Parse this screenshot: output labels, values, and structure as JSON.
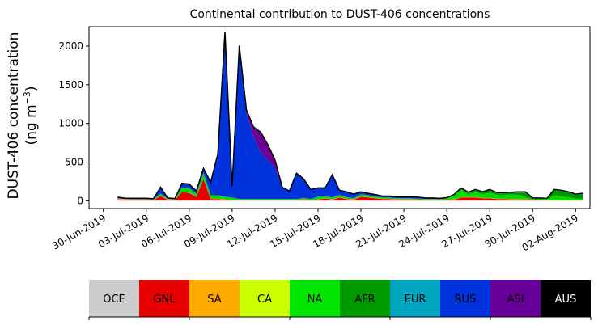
{
  "chart_data": {
    "type": "area",
    "stacked": true,
    "title": "Continental contribution to DUST-406 concentrations",
    "ylabel_line1": "DUST-406 concentration",
    "ylabel_line2_prefix": "(ng m",
    "ylabel_line2_exp": "−3",
    "ylabel_line2_suffix": ")",
    "x_start": "2019-06-29",
    "x_end": "2019-08-03",
    "ylim": [
      -100,
      2250
    ],
    "y_ticks": [
      0,
      500,
      1000,
      1500,
      2000
    ],
    "x_ticks": [
      {
        "date": "2019-06-30",
        "label": "30-Jun-2019"
      },
      {
        "date": "2019-07-03",
        "label": "03-Jul-2019"
      },
      {
        "date": "2019-07-06",
        "label": "06-Jul-2019"
      },
      {
        "date": "2019-07-09",
        "label": "09-Jul-2019"
      },
      {
        "date": "2019-07-12",
        "label": "12-Jul-2019"
      },
      {
        "date": "2019-07-15",
        "label": "15-Jul-2019"
      },
      {
        "date": "2019-07-18",
        "label": "18-Jul-2019"
      },
      {
        "date": "2019-07-21",
        "label": "21-Jul-2019"
      },
      {
        "date": "2019-07-24",
        "label": "24-Jul-2019"
      },
      {
        "date": "2019-07-27",
        "label": "27-Jul-2019"
      },
      {
        "date": "2019-07-30",
        "label": "30-Jul-2019"
      },
      {
        "date": "2019-08-02",
        "label": "02-Aug-2019"
      }
    ],
    "x": [
      "2019-07-01 00:00",
      "2019-07-01 12:00",
      "2019-07-02 00:00",
      "2019-07-02 12:00",
      "2019-07-03 00:00",
      "2019-07-03 12:00",
      "2019-07-04 00:00",
      "2019-07-04 12:00",
      "2019-07-05 00:00",
      "2019-07-05 12:00",
      "2019-07-06 00:00",
      "2019-07-06 12:00",
      "2019-07-07 00:00",
      "2019-07-07 12:00",
      "2019-07-08 00:00",
      "2019-07-08 12:00",
      "2019-07-09 00:00",
      "2019-07-09 12:00",
      "2019-07-10 00:00",
      "2019-07-10 12:00",
      "2019-07-11 00:00",
      "2019-07-11 12:00",
      "2019-07-12 00:00",
      "2019-07-12 12:00",
      "2019-07-13 00:00",
      "2019-07-13 12:00",
      "2019-07-14 00:00",
      "2019-07-14 12:00",
      "2019-07-15 00:00",
      "2019-07-15 12:00",
      "2019-07-16 00:00",
      "2019-07-16 12:00",
      "2019-07-17 00:00",
      "2019-07-17 12:00",
      "2019-07-18 00:00",
      "2019-07-18 12:00",
      "2019-07-19 00:00",
      "2019-07-19 12:00",
      "2019-07-20 00:00",
      "2019-07-20 12:00",
      "2019-07-21 00:00",
      "2019-07-21 12:00",
      "2019-07-22 00:00",
      "2019-07-22 12:00",
      "2019-07-23 00:00",
      "2019-07-23 12:00",
      "2019-07-24 00:00",
      "2019-07-24 12:00",
      "2019-07-25 00:00",
      "2019-07-25 12:00",
      "2019-07-26 00:00",
      "2019-07-26 12:00",
      "2019-07-27 00:00",
      "2019-07-27 12:00",
      "2019-07-28 00:00",
      "2019-07-28 12:00",
      "2019-07-29 00:00",
      "2019-07-29 12:00",
      "2019-07-30 00:00",
      "2019-07-30 12:00",
      "2019-07-31 00:00",
      "2019-07-31 12:00",
      "2019-08-01 00:00",
      "2019-08-01 12:00",
      "2019-08-02 00:00",
      "2019-08-02 12:00"
    ],
    "series": [
      {
        "name": "OCE",
        "color": "#c8c8c8",
        "values": [
          5,
          3,
          3,
          3,
          3,
          3,
          3,
          3,
          3,
          3,
          3,
          3,
          3,
          3,
          3,
          3,
          3,
          3,
          3,
          3,
          3,
          3,
          3,
          3,
          3,
          3,
          3,
          3,
          3,
          3,
          3,
          3,
          3,
          3,
          3,
          3,
          3,
          3,
          3,
          3,
          3,
          3,
          3,
          3,
          3,
          3,
          3,
          3,
          3,
          3,
          3,
          3,
          3,
          3,
          3,
          3,
          3,
          3,
          3,
          3,
          3,
          3,
          3,
          3,
          3,
          3
        ]
      },
      {
        "name": "GNL",
        "color": "#e60000",
        "values": [
          15,
          10,
          8,
          8,
          8,
          5,
          60,
          10,
          5,
          110,
          100,
          50,
          280,
          20,
          20,
          10,
          0,
          0,
          0,
          0,
          0,
          0,
          0,
          0,
          0,
          0,
          10,
          0,
          10,
          30,
          10,
          40,
          20,
          10,
          50,
          40,
          30,
          20,
          20,
          10,
          10,
          10,
          5,
          5,
          5,
          5,
          5,
          10,
          40,
          40,
          40,
          30,
          30,
          20,
          20,
          15,
          10,
          10,
          5,
          0,
          0,
          0,
          0,
          0,
          0,
          0
        ]
      },
      {
        "name": "SA",
        "color": "#ffaa00",
        "values": [
          2,
          2,
          2,
          2,
          2,
          2,
          2,
          2,
          2,
          2,
          2,
          2,
          2,
          2,
          2,
          2,
          2,
          2,
          2,
          2,
          2,
          2,
          2,
          2,
          2,
          2,
          2,
          2,
          2,
          2,
          2,
          2,
          2,
          2,
          2,
          2,
          2,
          2,
          2,
          2,
          2,
          2,
          2,
          2,
          2,
          2,
          2,
          2,
          2,
          2,
          2,
          2,
          2,
          2,
          2,
          2,
          2,
          2,
          2,
          2,
          2,
          2,
          2,
          2,
          2,
          2
        ]
      },
      {
        "name": "CA",
        "color": "#c8f000",
        "values": [
          2,
          2,
          2,
          2,
          2,
          2,
          2,
          2,
          2,
          2,
          2,
          2,
          2,
          2,
          2,
          2,
          2,
          2,
          2,
          2,
          2,
          2,
          2,
          2,
          2,
          2,
          2,
          2,
          2,
          2,
          2,
          2,
          2,
          2,
          2,
          2,
          2,
          2,
          2,
          2,
          2,
          2,
          2,
          2,
          2,
          2,
          2,
          2,
          2,
          2,
          2,
          2,
          2,
          2,
          2,
          2,
          2,
          2,
          2,
          2,
          2,
          2,
          2,
          2,
          2,
          2
        ]
      },
      {
        "name": "NA",
        "color": "#00dc00",
        "values": [
          5,
          3,
          3,
          3,
          3,
          3,
          20,
          5,
          5,
          50,
          50,
          30,
          70,
          40,
          40,
          30,
          30,
          10,
          10,
          10,
          10,
          10,
          10,
          10,
          10,
          10,
          15,
          10,
          30,
          20,
          20,
          25,
          15,
          10,
          20,
          20,
          15,
          10,
          10,
          10,
          10,
          10,
          10,
          5,
          5,
          5,
          15,
          50,
          100,
          40,
          70,
          50,
          70,
          50,
          50,
          60,
          60,
          30,
          5,
          10,
          10,
          60,
          50,
          40,
          20,
          20
        ]
      },
      {
        "name": "AFR",
        "color": "#009600",
        "values": [
          3,
          2,
          2,
          2,
          2,
          2,
          5,
          2,
          2,
          5,
          5,
          5,
          5,
          5,
          5,
          5,
          5,
          5,
          5,
          5,
          5,
          5,
          5,
          5,
          5,
          5,
          5,
          5,
          5,
          5,
          5,
          5,
          5,
          5,
          5,
          5,
          5,
          5,
          5,
          5,
          5,
          5,
          5,
          5,
          5,
          5,
          5,
          5,
          10,
          15,
          20,
          20,
          30,
          20,
          20,
          20,
          30,
          60,
          10,
          10,
          5,
          70,
          70,
          60,
          50,
          60
        ]
      },
      {
        "name": "EUR",
        "color": "#00a0c0",
        "values": [
          2,
          2,
          2,
          2,
          2,
          2,
          2,
          2,
          2,
          2,
          2,
          2,
          2,
          2,
          2,
          2,
          2,
          2,
          2,
          2,
          2,
          2,
          2,
          2,
          2,
          2,
          2,
          2,
          2,
          2,
          2,
          2,
          2,
          2,
          2,
          2,
          2,
          2,
          2,
          2,
          2,
          2,
          2,
          2,
          2,
          2,
          2,
          2,
          2,
          2,
          2,
          2,
          2,
          2,
          2,
          2,
          2,
          2,
          2,
          2,
          2,
          2,
          2,
          2,
          2,
          2
        ]
      },
      {
        "name": "RUS",
        "color": "#0032dc",
        "values": [
          10,
          8,
          8,
          8,
          8,
          5,
          80,
          8,
          5,
          50,
          50,
          30,
          50,
          160,
          500,
          2100,
          140,
          1950,
          1100,
          800,
          600,
          500,
          400,
          150,
          100,
          330,
          240,
          120,
          110,
          100,
          290,
          55,
          65,
          50,
          30,
          20,
          20,
          15,
          15,
          15,
          15,
          15,
          15,
          10,
          10,
          5,
          5,
          5,
          5,
          5,
          5,
          5,
          5,
          5,
          5,
          5,
          5,
          5,
          5,
          5,
          5,
          5,
          5,
          5,
          5,
          5
        ]
      },
      {
        "name": "ASI",
        "color": "#6e0096",
        "values": [
          2,
          2,
          2,
          2,
          2,
          2,
          2,
          2,
          2,
          2,
          2,
          2,
          5,
          5,
          30,
          30,
          5,
          30,
          50,
          130,
          260,
          200,
          100,
          2,
          2,
          2,
          2,
          2,
          2,
          2,
          2,
          2,
          2,
          2,
          2,
          2,
          2,
          2,
          2,
          2,
          2,
          2,
          2,
          2,
          2,
          2,
          2,
          2,
          2,
          2,
          2,
          2,
          2,
          2,
          2,
          2,
          2,
          2,
          2,
          2,
          2,
          2,
          2,
          2,
          2,
          2
        ]
      },
      {
        "name": "AUS",
        "color": "#000000",
        "values": [
          1,
          1,
          1,
          1,
          1,
          1,
          1,
          1,
          1,
          1,
          1,
          1,
          1,
          1,
          1,
          1,
          1,
          1,
          1,
          1,
          1,
          1,
          1,
          1,
          1,
          1,
          1,
          1,
          1,
          1,
          1,
          1,
          1,
          1,
          1,
          1,
          1,
          1,
          1,
          1,
          1,
          1,
          1,
          1,
          1,
          1,
          1,
          1,
          1,
          1,
          1,
          1,
          1,
          1,
          1,
          1,
          1,
          1,
          1,
          1,
          1,
          1,
          1,
          1,
          1,
          1
        ]
      }
    ],
    "legend": [
      {
        "label": "OCE",
        "color": "#cccccc",
        "text_color": "#000000"
      },
      {
        "label": "GNL",
        "color": "#e60000",
        "text_color": "#000000"
      },
      {
        "label": "SA",
        "color": "#ffaa00",
        "text_color": "#000000"
      },
      {
        "label": "CA",
        "color": "#ccff00",
        "text_color": "#000000"
      },
      {
        "label": "NA",
        "color": "#00e600",
        "text_color": "#000000"
      },
      {
        "label": "AFR",
        "color": "#009900",
        "text_color": "#000000"
      },
      {
        "label": "EUR",
        "color": "#00a6c0",
        "text_color": "#000000"
      },
      {
        "label": "RUS",
        "color": "#0033dd",
        "text_color": "#000000"
      },
      {
        "label": "ASI",
        "color": "#660099",
        "text_color": "#000000"
      },
      {
        "label": "AUS",
        "color": "#000000",
        "text_color": "#ffffff"
      }
    ],
    "legend_placement": "bottom",
    "grid": false
  }
}
